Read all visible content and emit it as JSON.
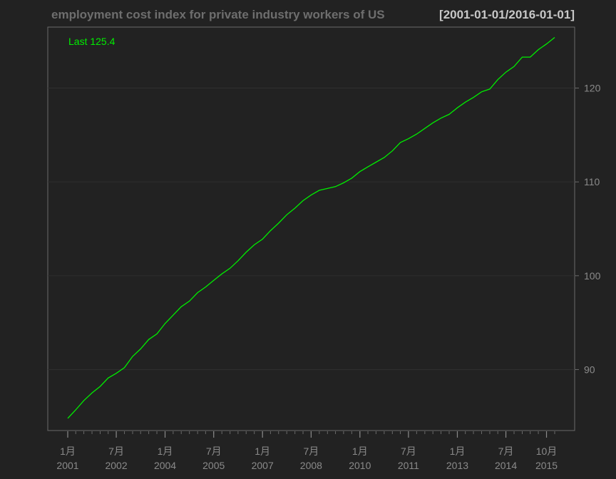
{
  "chart_data": {
    "type": "line",
    "title": "employment cost index for private industry workers of US",
    "date_range": "[2001-01-01/2016-01-01]",
    "last_label": "Last 125.4",
    "ylim": [
      83.5,
      126.5
    ],
    "y_ticks": [
      90,
      100,
      110,
      120
    ],
    "grid": true,
    "x_tick_labels": [
      {
        "month": "1月",
        "year": "2001"
      },
      {
        "month": "7月",
        "year": "2002"
      },
      {
        "month": "1月",
        "year": "2004"
      },
      {
        "month": "7月",
        "year": "2005"
      },
      {
        "month": "1月",
        "year": "2007"
      },
      {
        "month": "7月",
        "year": "2008"
      },
      {
        "month": "1月",
        "year": "2010"
      },
      {
        "month": "7月",
        "year": "2011"
      },
      {
        "month": "1月",
        "year": "2013"
      },
      {
        "month": "7月",
        "year": "2014"
      },
      {
        "month": "10月",
        "year": "2015"
      }
    ],
    "series": [
      {
        "color": "#00ee00",
        "x": [
          "2001-01",
          "2001-04",
          "2001-07",
          "2001-10",
          "2002-01",
          "2002-04",
          "2002-07",
          "2002-10",
          "2003-01",
          "2003-04",
          "2003-07",
          "2003-10",
          "2004-01",
          "2004-04",
          "2004-07",
          "2004-10",
          "2005-01",
          "2005-04",
          "2005-07",
          "2005-10",
          "2006-01",
          "2006-04",
          "2006-07",
          "2006-10",
          "2007-01",
          "2007-04",
          "2007-07",
          "2007-10",
          "2008-01",
          "2008-04",
          "2008-07",
          "2008-10",
          "2009-01",
          "2009-04",
          "2009-07",
          "2009-10",
          "2010-01",
          "2010-04",
          "2010-07",
          "2010-10",
          "2011-01",
          "2011-04",
          "2011-07",
          "2011-10",
          "2012-01",
          "2012-04",
          "2012-07",
          "2012-10",
          "2013-01",
          "2013-04",
          "2013-07",
          "2013-10",
          "2014-01",
          "2014-04",
          "2014-07",
          "2014-10",
          "2015-01",
          "2015-04",
          "2015-07",
          "2015-10",
          "2016-01"
        ],
        "values": [
          84.8,
          85.7,
          86.7,
          87.5,
          88.2,
          89.1,
          89.6,
          90.2,
          91.4,
          92.2,
          93.2,
          93.8,
          94.9,
          95.8,
          96.7,
          97.3,
          98.2,
          98.8,
          99.5,
          100.2,
          100.8,
          101.6,
          102.5,
          103.3,
          103.9,
          104.8,
          105.6,
          106.5,
          107.2,
          108.0,
          108.6,
          109.1,
          109.3,
          109.5,
          109.9,
          110.4,
          111.1,
          111.6,
          112.1,
          112.6,
          113.3,
          114.2,
          114.6,
          115.1,
          115.7,
          116.3,
          116.8,
          117.2,
          117.9,
          118.5,
          119.0,
          119.6,
          119.9,
          120.9,
          121.7,
          122.3,
          123.3,
          123.3,
          124.1,
          124.7,
          125.4
        ]
      }
    ]
  }
}
